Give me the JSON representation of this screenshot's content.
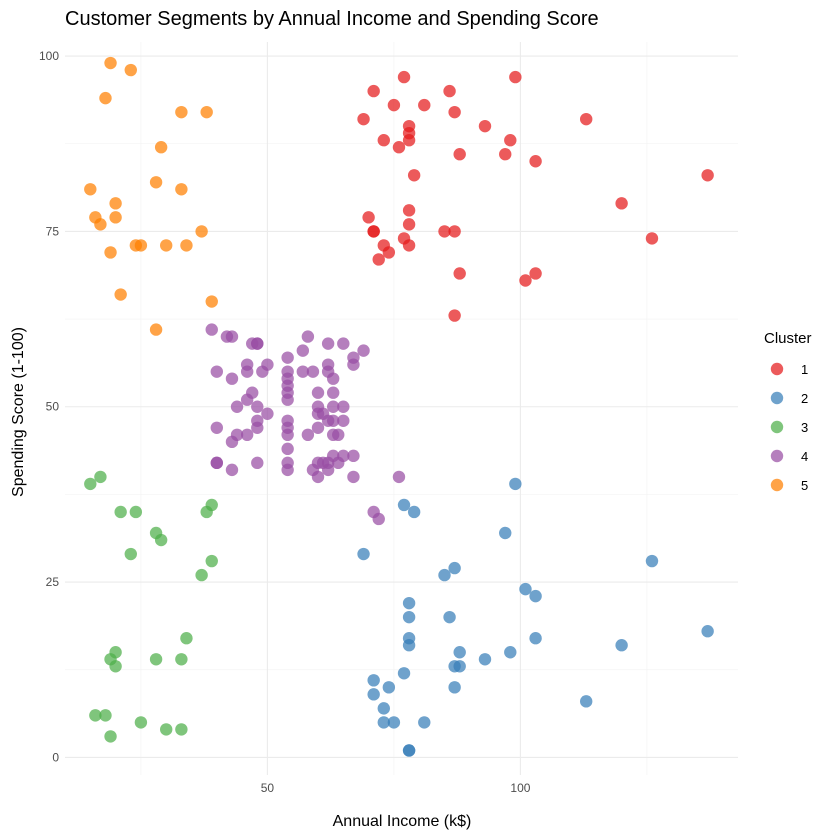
{
  "chart_data": {
    "type": "scatter",
    "title": "Customer Segments by Annual Income and Spending Score",
    "xlabel": "Annual Income (k$)",
    "ylabel": "Spending Score (1-100)",
    "xlim": [
      10,
      143
    ],
    "ylim": [
      -2.5,
      102
    ],
    "x_ticks": [
      50,
      100
    ],
    "y_ticks": [
      0,
      25,
      50,
      75,
      100
    ],
    "grid": true,
    "legend": {
      "title": "Cluster",
      "position": "right"
    },
    "series": [
      {
        "name": "1",
        "color": "#E41A1C",
        "points": [
          [
            70,
            77
          ],
          [
            71,
            75
          ],
          [
            71,
            75
          ],
          [
            71,
            95
          ],
          [
            72,
            71
          ],
          [
            73,
            73
          ],
          [
            73,
            88
          ],
          [
            74,
            72
          ],
          [
            75,
            93
          ],
          [
            76,
            87
          ],
          [
            77,
            97
          ],
          [
            77,
            74
          ],
          [
            78,
            90
          ],
          [
            78,
            88
          ],
          [
            78,
            89
          ],
          [
            78,
            76
          ],
          [
            78,
            78
          ],
          [
            78,
            73
          ],
          [
            79,
            83
          ],
          [
            81,
            93
          ],
          [
            69,
            91
          ],
          [
            85,
            75
          ],
          [
            86,
            95
          ],
          [
            87,
            92
          ],
          [
            87,
            75
          ],
          [
            87,
            63
          ],
          [
            88,
            86
          ],
          [
            88,
            69
          ],
          [
            93,
            90
          ],
          [
            97,
            86
          ],
          [
            98,
            88
          ],
          [
            99,
            97
          ],
          [
            101,
            68
          ],
          [
            103,
            85
          ],
          [
            103,
            69
          ],
          [
            113,
            91
          ],
          [
            120,
            79
          ],
          [
            126,
            74
          ],
          [
            137,
            83
          ]
        ]
      },
      {
        "name": "2",
        "color": "#377EB8",
        "points": [
          [
            69,
            29
          ],
          [
            71,
            11
          ],
          [
            71,
            9
          ],
          [
            73,
            5
          ],
          [
            73,
            7
          ],
          [
            74,
            10
          ],
          [
            75,
            5
          ],
          [
            77,
            12
          ],
          [
            77,
            36
          ],
          [
            78,
            22
          ],
          [
            78,
            17
          ],
          [
            78,
            20
          ],
          [
            78,
            16
          ],
          [
            78,
            1
          ],
          [
            78,
            1
          ],
          [
            79,
            35
          ],
          [
            81,
            5
          ],
          [
            85,
            26
          ],
          [
            86,
            20
          ],
          [
            87,
            27
          ],
          [
            87,
            13
          ],
          [
            87,
            10
          ],
          [
            88,
            13
          ],
          [
            88,
            15
          ],
          [
            93,
            14
          ],
          [
            97,
            32
          ],
          [
            98,
            15
          ],
          [
            99,
            39
          ],
          [
            101,
            24
          ],
          [
            103,
            17
          ],
          [
            103,
            23
          ],
          [
            113,
            8
          ],
          [
            120,
            16
          ],
          [
            126,
            28
          ],
          [
            137,
            18
          ]
        ]
      },
      {
        "name": "3",
        "color": "#4DAF4A",
        "points": [
          [
            15,
            39
          ],
          [
            16,
            6
          ],
          [
            17,
            40
          ],
          [
            18,
            6
          ],
          [
            19,
            3
          ],
          [
            19,
            14
          ],
          [
            20,
            15
          ],
          [
            20,
            13
          ],
          [
            21,
            35
          ],
          [
            23,
            29
          ],
          [
            24,
            35
          ],
          [
            25,
            5
          ],
          [
            28,
            14
          ],
          [
            28,
            32
          ],
          [
            29,
            31
          ],
          [
            30,
            4
          ],
          [
            33,
            4
          ],
          [
            33,
            14
          ],
          [
            34,
            17
          ],
          [
            37,
            26
          ],
          [
            38,
            35
          ],
          [
            39,
            36
          ],
          [
            39,
            28
          ]
        ]
      },
      {
        "name": "4",
        "color": "#984EA3",
        "points": [
          [
            39,
            61
          ],
          [
            40,
            47
          ],
          [
            40,
            55
          ],
          [
            40,
            42
          ],
          [
            40,
            42
          ],
          [
            42,
            60
          ],
          [
            43,
            54
          ],
          [
            43,
            60
          ],
          [
            43,
            45
          ],
          [
            43,
            41
          ],
          [
            44,
            50
          ],
          [
            44,
            46
          ],
          [
            46,
            51
          ],
          [
            46,
            56
          ],
          [
            46,
            55
          ],
          [
            46,
            46
          ],
          [
            47,
            52
          ],
          [
            47,
            59
          ],
          [
            48,
            59
          ],
          [
            48,
            50
          ],
          [
            48,
            48
          ],
          [
            48,
            47
          ],
          [
            48,
            42
          ],
          [
            48,
            59
          ],
          [
            49,
            55
          ],
          [
            50,
            56
          ],
          [
            50,
            49
          ],
          [
            54,
            47
          ],
          [
            54,
            54
          ],
          [
            54,
            53
          ],
          [
            54,
            48
          ],
          [
            54,
            52
          ],
          [
            54,
            42
          ],
          [
            54,
            51
          ],
          [
            54,
            55
          ],
          [
            54,
            41
          ],
          [
            54,
            44
          ],
          [
            54,
            57
          ],
          [
            54,
            46
          ],
          [
            57,
            58
          ],
          [
            57,
            55
          ],
          [
            58,
            60
          ],
          [
            58,
            46
          ],
          [
            59,
            55
          ],
          [
            59,
            41
          ],
          [
            60,
            49
          ],
          [
            60,
            40
          ],
          [
            60,
            42
          ],
          [
            60,
            52
          ],
          [
            60,
            47
          ],
          [
            60,
            50
          ],
          [
            61,
            42
          ],
          [
            61,
            49
          ],
          [
            62,
            41
          ],
          [
            62,
            48
          ],
          [
            62,
            59
          ],
          [
            62,
            55
          ],
          [
            62,
            56
          ],
          [
            62,
            42
          ],
          [
            63,
            50
          ],
          [
            63,
            46
          ],
          [
            63,
            43
          ],
          [
            63,
            48
          ],
          [
            63,
            52
          ],
          [
            63,
            54
          ],
          [
            64,
            42
          ],
          [
            64,
            46
          ],
          [
            65,
            48
          ],
          [
            65,
            50
          ],
          [
            65,
            43
          ],
          [
            65,
            59
          ],
          [
            67,
            43
          ],
          [
            67,
            57
          ],
          [
            67,
            56
          ],
          [
            67,
            40
          ],
          [
            69,
            58
          ],
          [
            71,
            35
          ],
          [
            72,
            34
          ],
          [
            76,
            40
          ]
        ]
      },
      {
        "name": "5",
        "color": "#FF7F00",
        "points": [
          [
            15,
            81
          ],
          [
            16,
            77
          ],
          [
            17,
            76
          ],
          [
            18,
            94
          ],
          [
            19,
            72
          ],
          [
            19,
            99
          ],
          [
            20,
            77
          ],
          [
            20,
            79
          ],
          [
            21,
            66
          ],
          [
            23,
            98
          ],
          [
            24,
            73
          ],
          [
            25,
            73
          ],
          [
            28,
            82
          ],
          [
            28,
            61
          ],
          [
            29,
            87
          ],
          [
            30,
            73
          ],
          [
            33,
            92
          ],
          [
            33,
            81
          ],
          [
            34,
            73
          ],
          [
            37,
            75
          ],
          [
            38,
            92
          ],
          [
            39,
            65
          ]
        ]
      }
    ]
  }
}
